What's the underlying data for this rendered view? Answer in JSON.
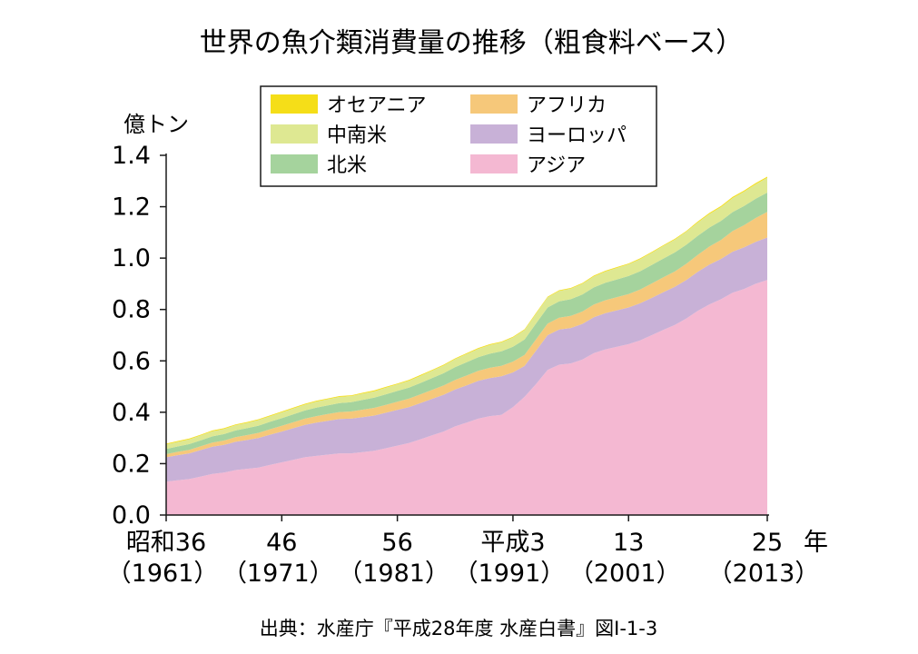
{
  "chart_data": {
    "type": "area",
    "stacked": true,
    "title": "世界の魚介類消費量の推移（粗食料ベース）",
    "yunit": "億トン",
    "xunit": "年",
    "ylim": [
      0,
      1.4
    ],
    "yticks": [
      "0.0",
      "0.2",
      "0.4",
      "0.6",
      "0.8",
      "1.0",
      "1.2",
      "1.4"
    ],
    "xlim": [
      1961,
      2013
    ],
    "xticks": [
      {
        "x": 1961,
        "era": "昭和36",
        "ad": "（1961）"
      },
      {
        "x": 1971,
        "era": "46",
        "ad": "（1971）"
      },
      {
        "x": 1981,
        "era": "56",
        "ad": "（1981）"
      },
      {
        "x": 1991,
        "era": "平成3",
        "ad": "（1991）"
      },
      {
        "x": 2001,
        "era": "13",
        "ad": "（2001）"
      },
      {
        "x": 2013,
        "era": "25",
        "ad": "（2013）"
      }
    ],
    "x": [
      1961,
      1962,
      1963,
      1964,
      1965,
      1966,
      1967,
      1968,
      1969,
      1970,
      1971,
      1972,
      1973,
      1974,
      1975,
      1976,
      1977,
      1978,
      1979,
      1980,
      1981,
      1982,
      1983,
      1984,
      1985,
      1986,
      1987,
      1988,
      1989,
      1990,
      1991,
      1992,
      1993,
      1994,
      1995,
      1996,
      1997,
      1998,
      1999,
      2000,
      2001,
      2002,
      2003,
      2004,
      2005,
      2006,
      2007,
      2008,
      2009,
      2010,
      2011,
      2012,
      2013
    ],
    "series": [
      {
        "name": "アジア",
        "color": "#f4b8d2",
        "values": [
          0.13,
          0.135,
          0.14,
          0.15,
          0.16,
          0.165,
          0.175,
          0.18,
          0.185,
          0.195,
          0.205,
          0.215,
          0.225,
          0.23,
          0.235,
          0.24,
          0.24,
          0.245,
          0.25,
          0.26,
          0.27,
          0.28,
          0.295,
          0.31,
          0.325,
          0.345,
          0.36,
          0.375,
          0.385,
          0.39,
          0.42,
          0.46,
          0.51,
          0.565,
          0.585,
          0.59,
          0.605,
          0.63,
          0.645,
          0.655,
          0.665,
          0.68,
          0.7,
          0.72,
          0.74,
          0.765,
          0.795,
          0.82,
          0.84,
          0.865,
          0.88,
          0.9,
          0.915
        ]
      },
      {
        "name": "ヨーロッパ",
        "color": "#c8b1d7",
        "values": [
          0.095,
          0.098,
          0.1,
          0.103,
          0.106,
          0.108,
          0.11,
          0.112,
          0.115,
          0.118,
          0.12,
          0.123,
          0.126,
          0.13,
          0.132,
          0.134,
          0.135,
          0.136,
          0.137,
          0.138,
          0.139,
          0.14,
          0.141,
          0.142,
          0.143,
          0.144,
          0.145,
          0.147,
          0.148,
          0.15,
          0.135,
          0.12,
          0.13,
          0.135,
          0.137,
          0.138,
          0.139,
          0.14,
          0.141,
          0.142,
          0.143,
          0.144,
          0.145,
          0.147,
          0.148,
          0.15,
          0.152,
          0.155,
          0.157,
          0.16,
          0.162,
          0.163,
          0.165
        ]
      },
      {
        "name": "アフリカ",
        "color": "#f6c87a",
        "values": [
          0.012,
          0.013,
          0.014,
          0.015,
          0.016,
          0.017,
          0.018,
          0.019,
          0.02,
          0.021,
          0.022,
          0.023,
          0.024,
          0.025,
          0.026,
          0.027,
          0.028,
          0.029,
          0.03,
          0.031,
          0.032,
          0.033,
          0.034,
          0.035,
          0.036,
          0.037,
          0.038,
          0.039,
          0.04,
          0.041,
          0.042,
          0.043,
          0.044,
          0.045,
          0.046,
          0.047,
          0.048,
          0.049,
          0.05,
          0.051,
          0.052,
          0.054,
          0.056,
          0.058,
          0.06,
          0.063,
          0.066,
          0.07,
          0.074,
          0.08,
          0.086,
          0.093,
          0.1
        ]
      },
      {
        "name": "北米",
        "color": "#a5d39d",
        "values": [
          0.02,
          0.021,
          0.022,
          0.023,
          0.024,
          0.025,
          0.026,
          0.027,
          0.028,
          0.029,
          0.03,
          0.031,
          0.032,
          0.033,
          0.034,
          0.035,
          0.036,
          0.038,
          0.04,
          0.041,
          0.042,
          0.043,
          0.044,
          0.046,
          0.048,
          0.05,
          0.052,
          0.053,
          0.055,
          0.056,
          0.058,
          0.06,
          0.062,
          0.063,
          0.064,
          0.065,
          0.066,
          0.067,
          0.068,
          0.069,
          0.07,
          0.071,
          0.072,
          0.073,
          0.074,
          0.074,
          0.074,
          0.074,
          0.074,
          0.074,
          0.075,
          0.075,
          0.075
        ]
      },
      {
        "name": "中南米",
        "color": "#dee892",
        "values": [
          0.018,
          0.018,
          0.019,
          0.019,
          0.02,
          0.02,
          0.021,
          0.021,
          0.022,
          0.022,
          0.023,
          0.023,
          0.023,
          0.024,
          0.024,
          0.024,
          0.024,
          0.025,
          0.025,
          0.026,
          0.026,
          0.027,
          0.028,
          0.029,
          0.03,
          0.031,
          0.032,
          0.033,
          0.034,
          0.035,
          0.036,
          0.037,
          0.038,
          0.039,
          0.04,
          0.041,
          0.042,
          0.043,
          0.044,
          0.045,
          0.046,
          0.047,
          0.048,
          0.049,
          0.05,
          0.051,
          0.052,
          0.053,
          0.054,
          0.055,
          0.056,
          0.057,
          0.058
        ]
      },
      {
        "name": "オセアニア",
        "color": "#f5de18",
        "values": [
          0.003,
          0.003,
          0.003,
          0.003,
          0.003,
          0.003,
          0.003,
          0.003,
          0.003,
          0.003,
          0.003,
          0.003,
          0.003,
          0.003,
          0.003,
          0.003,
          0.003,
          0.003,
          0.003,
          0.003,
          0.003,
          0.003,
          0.003,
          0.003,
          0.003,
          0.003,
          0.003,
          0.003,
          0.003,
          0.003,
          0.003,
          0.003,
          0.003,
          0.003,
          0.003,
          0.003,
          0.003,
          0.003,
          0.003,
          0.003,
          0.003,
          0.003,
          0.003,
          0.003,
          0.003,
          0.003,
          0.004,
          0.004,
          0.004,
          0.004,
          0.004,
          0.004,
          0.004
        ]
      }
    ],
    "legend": [
      {
        "name": "オセアニア",
        "color": "#f5de18"
      },
      {
        "name": "アフリカ",
        "color": "#f6c87a"
      },
      {
        "name": "中南米",
        "color": "#dee892"
      },
      {
        "name": "ヨーロッパ",
        "color": "#c8b1d7"
      },
      {
        "name": "北米",
        "color": "#a5d39d"
      },
      {
        "name": "アジア",
        "color": "#f4b8d2"
      }
    ],
    "legend_position": "top-center",
    "grid": false,
    "source": "出典：水産庁『平成28年度 水産白書』図I-1-3"
  }
}
